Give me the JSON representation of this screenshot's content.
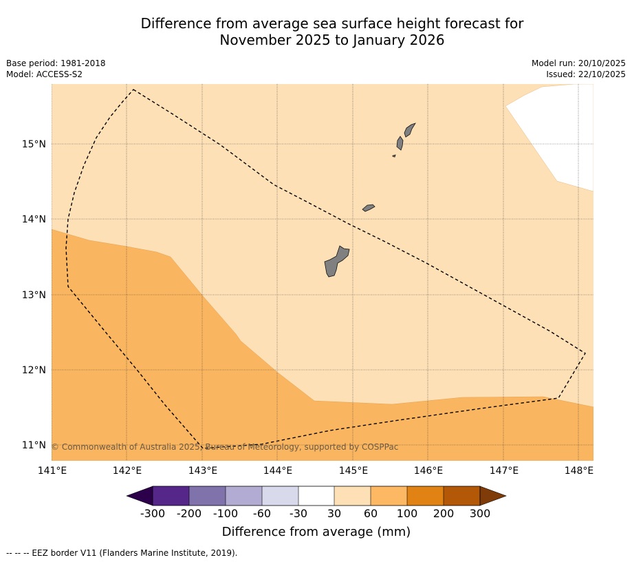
{
  "title_line1": "Difference from average sea surface height forecast for",
  "title_line2": "November 2025 to January 2026",
  "meta_left": [
    "Base period: 1981-2018",
    "Model: ACCESS-S2"
  ],
  "meta_right": [
    "Model run: 20/10/2025",
    "Issued: 22/10/2025"
  ],
  "map": {
    "lon_labels": [
      "141°E",
      "142°E",
      "143°E",
      "144°E",
      "145°E",
      "146°E",
      "147°E",
      "148°E"
    ],
    "lat_labels": [
      "15°N",
      "14°N",
      "13°N",
      "12°N",
      "11°N"
    ],
    "lon_range": [
      141.0,
      148.2
    ],
    "lat_range": [
      10.8,
      15.8
    ],
    "copyright": "© Commonwealth of Australia 2025, Bureau of Meteorology, supported by COSPPac",
    "colors": {
      "band_30_60": "#fde0b6",
      "band_60_100": "#f9b55f",
      "band_minus30_30": "#ffffff",
      "land": "#808080",
      "eez_line": "#000000"
    }
  },
  "colorbar": {
    "title": "Difference from average (mm)",
    "tick_labels": [
      "-300",
      "-200",
      "-100",
      "-60",
      "-30",
      "30",
      "60",
      "100",
      "200",
      "300"
    ],
    "extend_low_color": "#2d004b",
    "extend_high_color": "#7f3b08",
    "band_colors": [
      "#542788",
      "#8073ac",
      "#b2abd2",
      "#d8daeb",
      "#ffffff",
      "#fee0b6",
      "#fdb863",
      "#e08214",
      "#b35806"
    ]
  },
  "footer": "--  --  -- EEZ border V11 (Flanders Marine Institute, 2019)."
}
